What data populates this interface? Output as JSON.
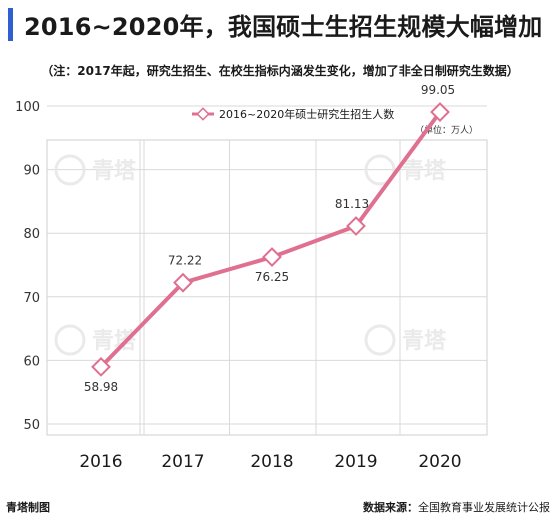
{
  "page": {
    "title": "2016~2020年，我国硕士生招生规模大幅增加",
    "note": "（注：2017年起，研究生招生、在校生指标内涵发生变化，增加了非全日制研究生数据）",
    "unit": "（单位：万人）",
    "watermark": "青塔",
    "footer_left": "青塔制图",
    "footer_source_label": "数据来源：",
    "footer_source": "全国教育事业发展统计公报"
  },
  "colors": {
    "accent": "#2f5fd1",
    "line": "#e07090",
    "marker_fill": "#ffffff",
    "grid": "#d9d9d9",
    "watermark": "#e8e8e8"
  },
  "chart_data": {
    "type": "line",
    "categories": [
      "2016",
      "2017",
      "2018",
      "2019",
      "2020"
    ],
    "series": [
      {
        "name": "2016~2020年硕士研究生招生人数",
        "values": [
          58.98,
          72.22,
          76.25,
          81.13,
          99.05
        ],
        "labels": [
          "58.98",
          "72.22",
          "76.25",
          "81.13",
          "99.05"
        ]
      }
    ],
    "yticks": [
      50,
      60,
      70,
      80,
      90,
      100
    ],
    "ylim": [
      50,
      100
    ],
    "legend_position": "top-center",
    "grid": true
  }
}
